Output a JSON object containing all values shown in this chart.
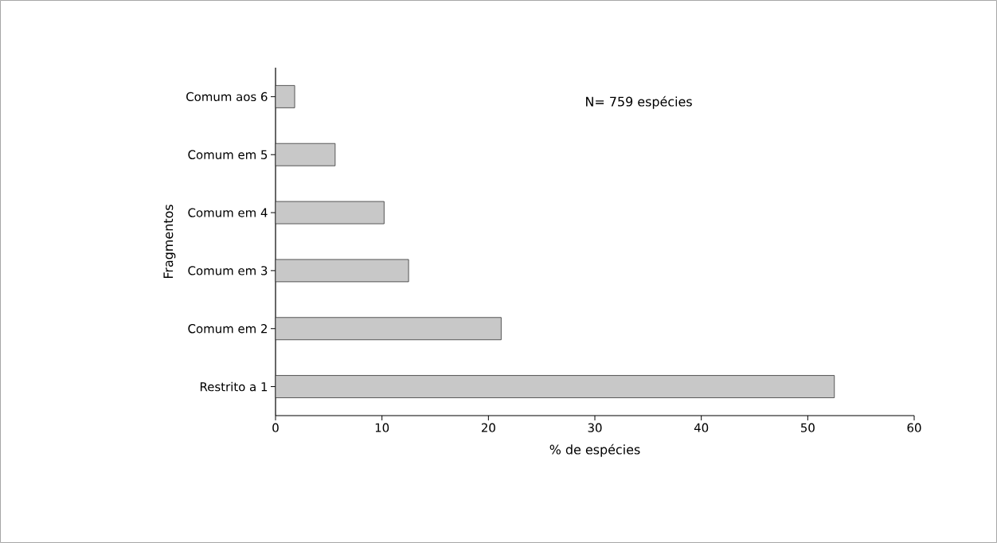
{
  "chart_data": {
    "type": "bar",
    "orientation": "horizontal",
    "xlabel": "% de espécies",
    "ylabel": "Fragmentos",
    "categories": [
      "Comum aos 6",
      "Comum em 5",
      "Comum em 4",
      "Comum em 3",
      "Comum em 2",
      "Restrito a 1"
    ],
    "values": [
      1.8,
      5.6,
      10.2,
      12.5,
      21.2,
      52.5
    ],
    "color": "#c8c8c8",
    "xlim": [
      0,
      60
    ],
    "xticks": [
      0,
      10,
      20,
      30,
      40,
      50,
      60
    ],
    "grid": false,
    "annotations": [
      "N= 759 espécies"
    ]
  }
}
